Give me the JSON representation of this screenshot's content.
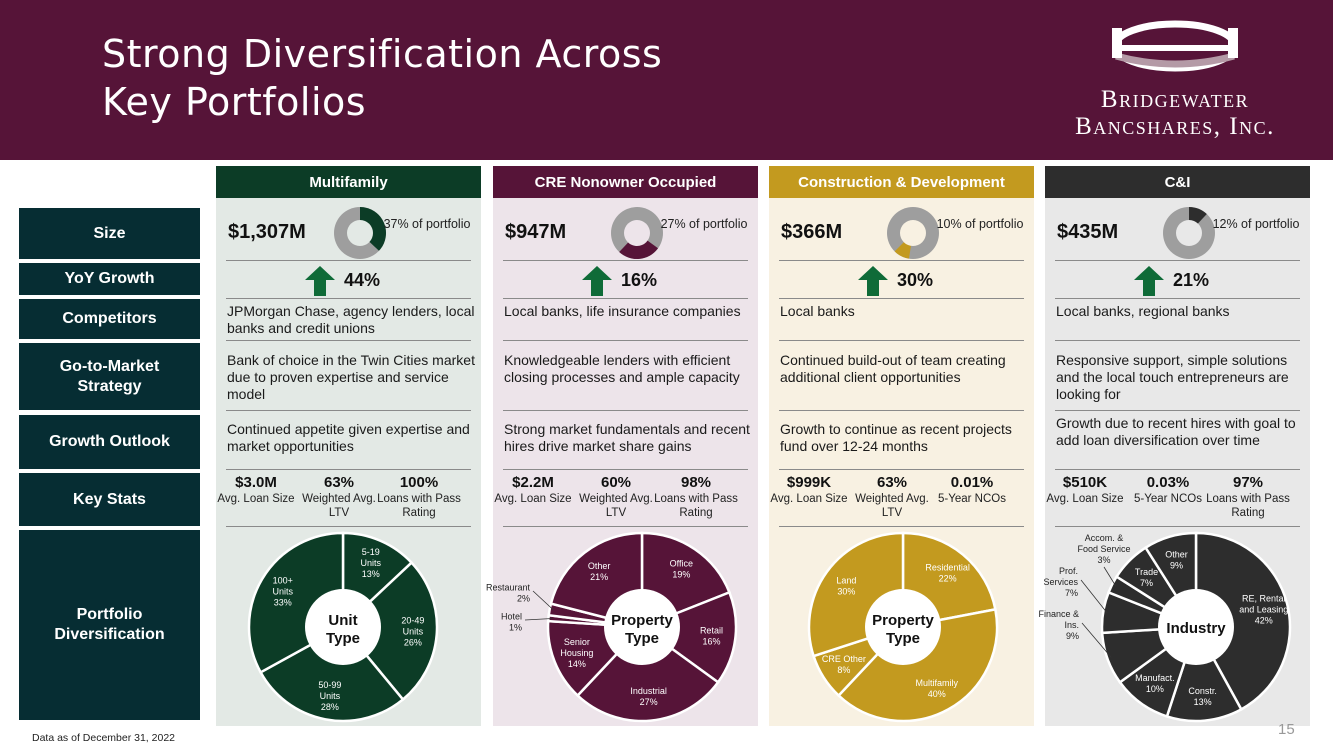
{
  "title": {
    "line1": "Strong Diversification Across",
    "line2": "Key Portfolios"
  },
  "logo": {
    "line1": "Bridgewater",
    "line2": "Bancshares, Inc."
  },
  "row_labels": [
    "Size",
    "YoY Growth",
    "Competitors",
    "Go-to-Market Strategy",
    "Growth Outlook",
    "Key Stats",
    "Portfolio Diversification"
  ],
  "panels": [
    {
      "header": "Multifamily",
      "header_color": "#0c3c26",
      "bg_color": "#e3e9e5",
      "accent": "#0c3c26",
      "size": "$1,307M",
      "portfolio_pct": "37% of portfolio",
      "portfolio_fraction": 0.37,
      "growth": "44%",
      "competitors": "JPMorgan Chase, agency lenders, local banks and credit unions",
      "strategy": "Bank of choice in the Twin Cities market due to proven expertise and service model",
      "outlook": "Continued appetite given expertise and market opportunities",
      "stats": [
        {
          "value": "$3.0M",
          "label": "Avg. Loan Size"
        },
        {
          "value": "63%",
          "label": "Weighted Avg. LTV"
        },
        {
          "value": "100%",
          "label": "Loans with Pass Rating"
        }
      ],
      "pie_center": "Unit Type",
      "slices": [
        {
          "label": "5-19 Units 13%",
          "value": 13
        },
        {
          "label": "20-49 Units 26%",
          "value": 26
        },
        {
          "label": "50-99 Units 28%",
          "value": 28
        },
        {
          "label": "100+ Units 33%",
          "value": 33
        }
      ]
    },
    {
      "header": "CRE Nonowner Occupied",
      "header_color": "#561438",
      "bg_color": "#ede4ea",
      "accent": "#561438",
      "size": "$947M",
      "portfolio_pct": "27% of portfolio",
      "portfolio_fraction": 0.27,
      "growth": "16%",
      "competitors": "Local banks, life insurance companies",
      "strategy": "Knowledgeable lenders with efficient closing processes and ample capacity",
      "outlook": "Strong market fundamentals and recent hires drive market share gains",
      "stats": [
        {
          "value": "$2.2M",
          "label": "Avg. Loan Size"
        },
        {
          "value": "60%",
          "label": "Weighted Avg. LTV"
        },
        {
          "value": "98%",
          "label": "Loans with Pass Rating"
        }
      ],
      "pie_center": "Property Type",
      "slices": [
        {
          "label": "Office 19%",
          "value": 19
        },
        {
          "label": "Retail 16%",
          "value": 16
        },
        {
          "label": "Industrial 27%",
          "value": 27
        },
        {
          "label": "Senior Housing 14%",
          "value": 14
        },
        {
          "label": "Hotel 1%",
          "value": 1
        },
        {
          "label": "Restaurant 2%",
          "value": 2
        },
        {
          "label": "Other 21%",
          "value": 21
        }
      ]
    },
    {
      "header": "Construction & Development",
      "header_color": "#c39a1f",
      "bg_color": "#f8f1e2",
      "accent": "#c39a1f",
      "size": "$366M",
      "portfolio_pct": "10% of portfolio",
      "portfolio_fraction": 0.1,
      "growth": "30%",
      "competitors": "Local banks",
      "strategy": "Continued build-out of team creating additional client opportunities",
      "outlook": "Growth to continue as recent projects fund over 12-24 months",
      "stats": [
        {
          "value": "$999K",
          "label": "Avg. Loan Size"
        },
        {
          "value": "63%",
          "label": "Weighted Avg. LTV"
        },
        {
          "value": "0.01%",
          "label": "5-Year NCOs"
        }
      ],
      "pie_center": "Property Type",
      "slices": [
        {
          "label": "Residential 22%",
          "value": 22
        },
        {
          "label": "Multifamily 40%",
          "value": 40
        },
        {
          "label": "CRE Other 8%",
          "value": 8
        },
        {
          "label": "Land 30%",
          "value": 30
        }
      ]
    },
    {
      "header": "C&I",
      "header_color": "#2d2d2d",
      "bg_color": "#e8e8e8",
      "accent": "#2d2d2d",
      "size": "$435M",
      "portfolio_pct": "12% of portfolio",
      "portfolio_fraction": 0.12,
      "growth": "21%",
      "competitors": "Local banks, regional banks",
      "strategy": "Responsive support, simple solutions and the local touch entrepreneurs are looking for",
      "outlook": "Growth due to recent hires with goal to add loan diversification over time",
      "stats": [
        {
          "value": "$510K",
          "label": "Avg. Loan Size"
        },
        {
          "value": "0.03%",
          "label": "5-Year NCOs"
        },
        {
          "value": "97%",
          "label": "Loans with Pass Rating"
        }
      ],
      "pie_center": "Industry",
      "slices": [
        {
          "label": "RE, Rental and Leasing 42%",
          "value": 42
        },
        {
          "label": "Constr. 13%",
          "value": 13
        },
        {
          "label": "Manufact. 10%",
          "value": 10
        },
        {
          "label": "Finance & Ins. 9%",
          "value": 9
        },
        {
          "label": "Prof. Services 7%",
          "value": 7
        },
        {
          "label": "Accom. & Food Service 3%",
          "value": 3
        },
        {
          "label": "Trade 7%",
          "value": 7
        },
        {
          "label": "Other 9%",
          "value": 9
        }
      ]
    }
  ],
  "footnote": "Data as of December 31, 2022",
  "page_number": "15"
}
